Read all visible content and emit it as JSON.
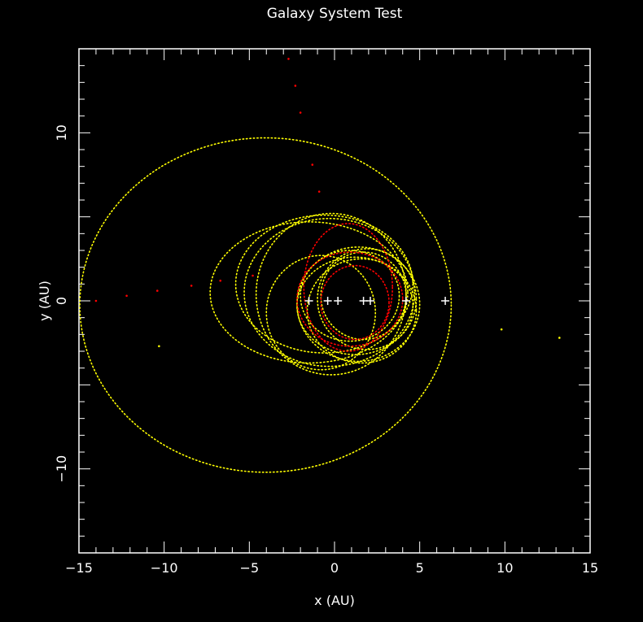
{
  "chart_data": {
    "type": "scatter",
    "title": "Galaxy System Test",
    "xlabel": "x (AU)",
    "ylabel": "y (AU)",
    "xlim": [
      -15,
      15
    ],
    "ylim": [
      -15,
      15
    ],
    "xticks": [
      -15,
      -10,
      -5,
      0,
      5,
      10,
      15
    ],
    "yticks": [
      -10,
      0,
      10
    ],
    "xtick_labels": [
      "−15",
      "−10",
      "−5",
      "0",
      "5",
      "10",
      "15"
    ],
    "ytick_labels": [
      "−10",
      "0",
      "10"
    ],
    "grid": false,
    "legend": "none",
    "colors": {
      "background": "#000000",
      "axes": "#ffffff",
      "yellow": "#ffff00",
      "red": "#ff0000",
      "markers": "#ffffff"
    },
    "yellow_orbits": [
      {
        "cx": -4.05,
        "cy": -0.25,
        "a": 10.9,
        "b": 9.95,
        "rot": 0
      },
      {
        "cx": 1.4,
        "cy": -0.2,
        "a": 3.6,
        "b": 3.4,
        "rot": 0
      },
      {
        "cx": 1.6,
        "cy": -0.6,
        "a": 3.2,
        "b": 3.1,
        "rot": 0
      },
      {
        "cx": 1.9,
        "cy": 0.1,
        "a": 2.9,
        "b": 3.0,
        "rot": 0
      },
      {
        "cx": 1.2,
        "cy": -0.3,
        "a": 3.4,
        "b": 2.9,
        "rot": 0
      },
      {
        "cx": 1.7,
        "cy": 0.3,
        "a": 2.5,
        "b": 2.6,
        "rot": 0
      },
      {
        "cx": 0.9,
        "cy": 0.3,
        "a": 2.9,
        "b": 2.7,
        "rot": 0
      },
      {
        "cx": -1.5,
        "cy": 0.5,
        "a": 5.8,
        "b": 4.2,
        "rot": 0
      },
      {
        "cx": -0.6,
        "cy": 1.0,
        "a": 5.2,
        "b": 4.1,
        "rot": 0
      },
      {
        "cx": -0.3,
        "cy": 0.5,
        "a": 5.0,
        "b": 4.4,
        "rot": 0
      },
      {
        "cx": -0.2,
        "cy": 0.4,
        "a": 4.4,
        "b": 4.8,
        "rot": 0
      },
      {
        "cx": -0.8,
        "cy": -0.7,
        "a": 3.2,
        "b": 3.4,
        "rot": 0
      }
    ],
    "red_orbits": [
      {
        "cx": 0.9,
        "cy": 0.1,
        "a": 3.1,
        "b": 2.8,
        "rot": 0
      },
      {
        "cx": 0.8,
        "cy": 0.8,
        "a": 2.6,
        "b": 3.8,
        "rot": 0
      },
      {
        "cx": 1.2,
        "cy": -0.1,
        "a": 2.0,
        "b": 2.2,
        "rot": 0
      }
    ],
    "red_scattered_points": [
      {
        "x": -2.7,
        "y": 14.4
      },
      {
        "x": -2.3,
        "y": 12.8
      },
      {
        "x": -2.0,
        "y": 11.2
      },
      {
        "x": -1.3,
        "y": 8.1
      },
      {
        "x": -0.9,
        "y": 6.5
      },
      {
        "x": -14.0,
        "y": 0.0
      },
      {
        "x": -12.2,
        "y": 0.3
      },
      {
        "x": -10.4,
        "y": 0.6
      },
      {
        "x": -8.4,
        "y": 0.9
      },
      {
        "x": -6.7,
        "y": 1.2
      },
      {
        "x": -4.8,
        "y": 1.5
      }
    ],
    "yellow_scattered_points": [
      {
        "x": -10.3,
        "y": -2.7
      },
      {
        "x": 9.8,
        "y": -1.7
      },
      {
        "x": 13.2,
        "y": -2.2
      }
    ],
    "plus_markers": [
      {
        "x": -1.5,
        "y": 0
      },
      {
        "x": -0.4,
        "y": 0
      },
      {
        "x": 0.2,
        "y": 0
      },
      {
        "x": 1.7,
        "y": 0
      },
      {
        "x": 2.1,
        "y": 0
      },
      {
        "x": 4.2,
        "y": 0
      },
      {
        "x": 6.5,
        "y": 0
      }
    ]
  }
}
